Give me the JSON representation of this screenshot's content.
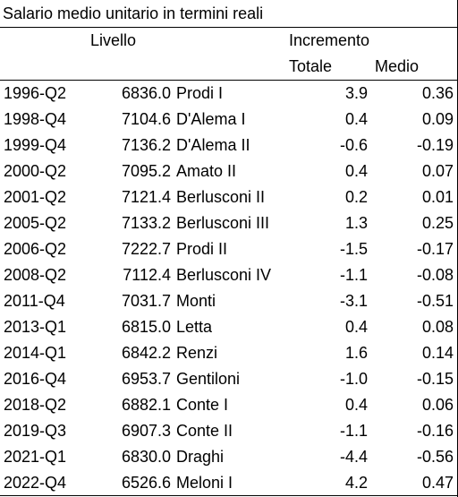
{
  "title": "Salario medio unitario in termini reali",
  "headers": {
    "livello": "Livello",
    "incremento": "Incremento",
    "totale": "Totale",
    "medio": "Medio"
  },
  "rows": [
    {
      "period": "1996-Q2",
      "level": "6836.0",
      "government": "Prodi I",
      "total": "3.9",
      "average": "0.36"
    },
    {
      "period": "1998-Q4",
      "level": "7104.6",
      "government": "D'Alema I",
      "total": "0.4",
      "average": "0.09"
    },
    {
      "period": "1999-Q4",
      "level": "7136.2",
      "government": "D'Alema II",
      "total": "-0.6",
      "average": "-0.19"
    },
    {
      "period": "2000-Q2",
      "level": "7095.2",
      "government": "Amato II",
      "total": "0.4",
      "average": "0.07"
    },
    {
      "period": "2001-Q2",
      "level": "7121.4",
      "government": "Berlusconi II",
      "total": "0.2",
      "average": "0.01"
    },
    {
      "period": "2005-Q2",
      "level": "7133.2",
      "government": "Berlusconi III",
      "total": "1.3",
      "average": "0.25"
    },
    {
      "period": "2006-Q2",
      "level": "7222.7",
      "government": "Prodi II",
      "total": "-1.5",
      "average": "-0.17"
    },
    {
      "period": "2008-Q2",
      "level": "7112.4",
      "government": "Berlusconi IV",
      "total": "-1.1",
      "average": "-0.08"
    },
    {
      "period": "2011-Q4",
      "level": "7031.7",
      "government": "Monti",
      "total": "-3.1",
      "average": "-0.51"
    },
    {
      "period": "2013-Q1",
      "level": "6815.0",
      "government": "Letta",
      "total": "0.4",
      "average": "0.08"
    },
    {
      "period": "2014-Q1",
      "level": "6842.2",
      "government": "Renzi",
      "total": "1.6",
      "average": "0.14"
    },
    {
      "period": "2016-Q4",
      "level": "6953.7",
      "government": "Gentiloni",
      "total": "-1.0",
      "average": "-0.15"
    },
    {
      "period": "2018-Q2",
      "level": "6882.1",
      "government": "Conte I",
      "total": "0.4",
      "average": "0.06"
    },
    {
      "period": "2019-Q3",
      "level": "6907.3",
      "government": "Conte II",
      "total": "-1.1",
      "average": "-0.16"
    },
    {
      "period": "2021-Q1",
      "level": "6830.0",
      "government": "Draghi",
      "total": "-4.4",
      "average": "-0.56"
    },
    {
      "period": "2022-Q4",
      "level": "6526.6",
      "government": "Meloni I",
      "total": "4.2",
      "average": "0.47"
    }
  ]
}
